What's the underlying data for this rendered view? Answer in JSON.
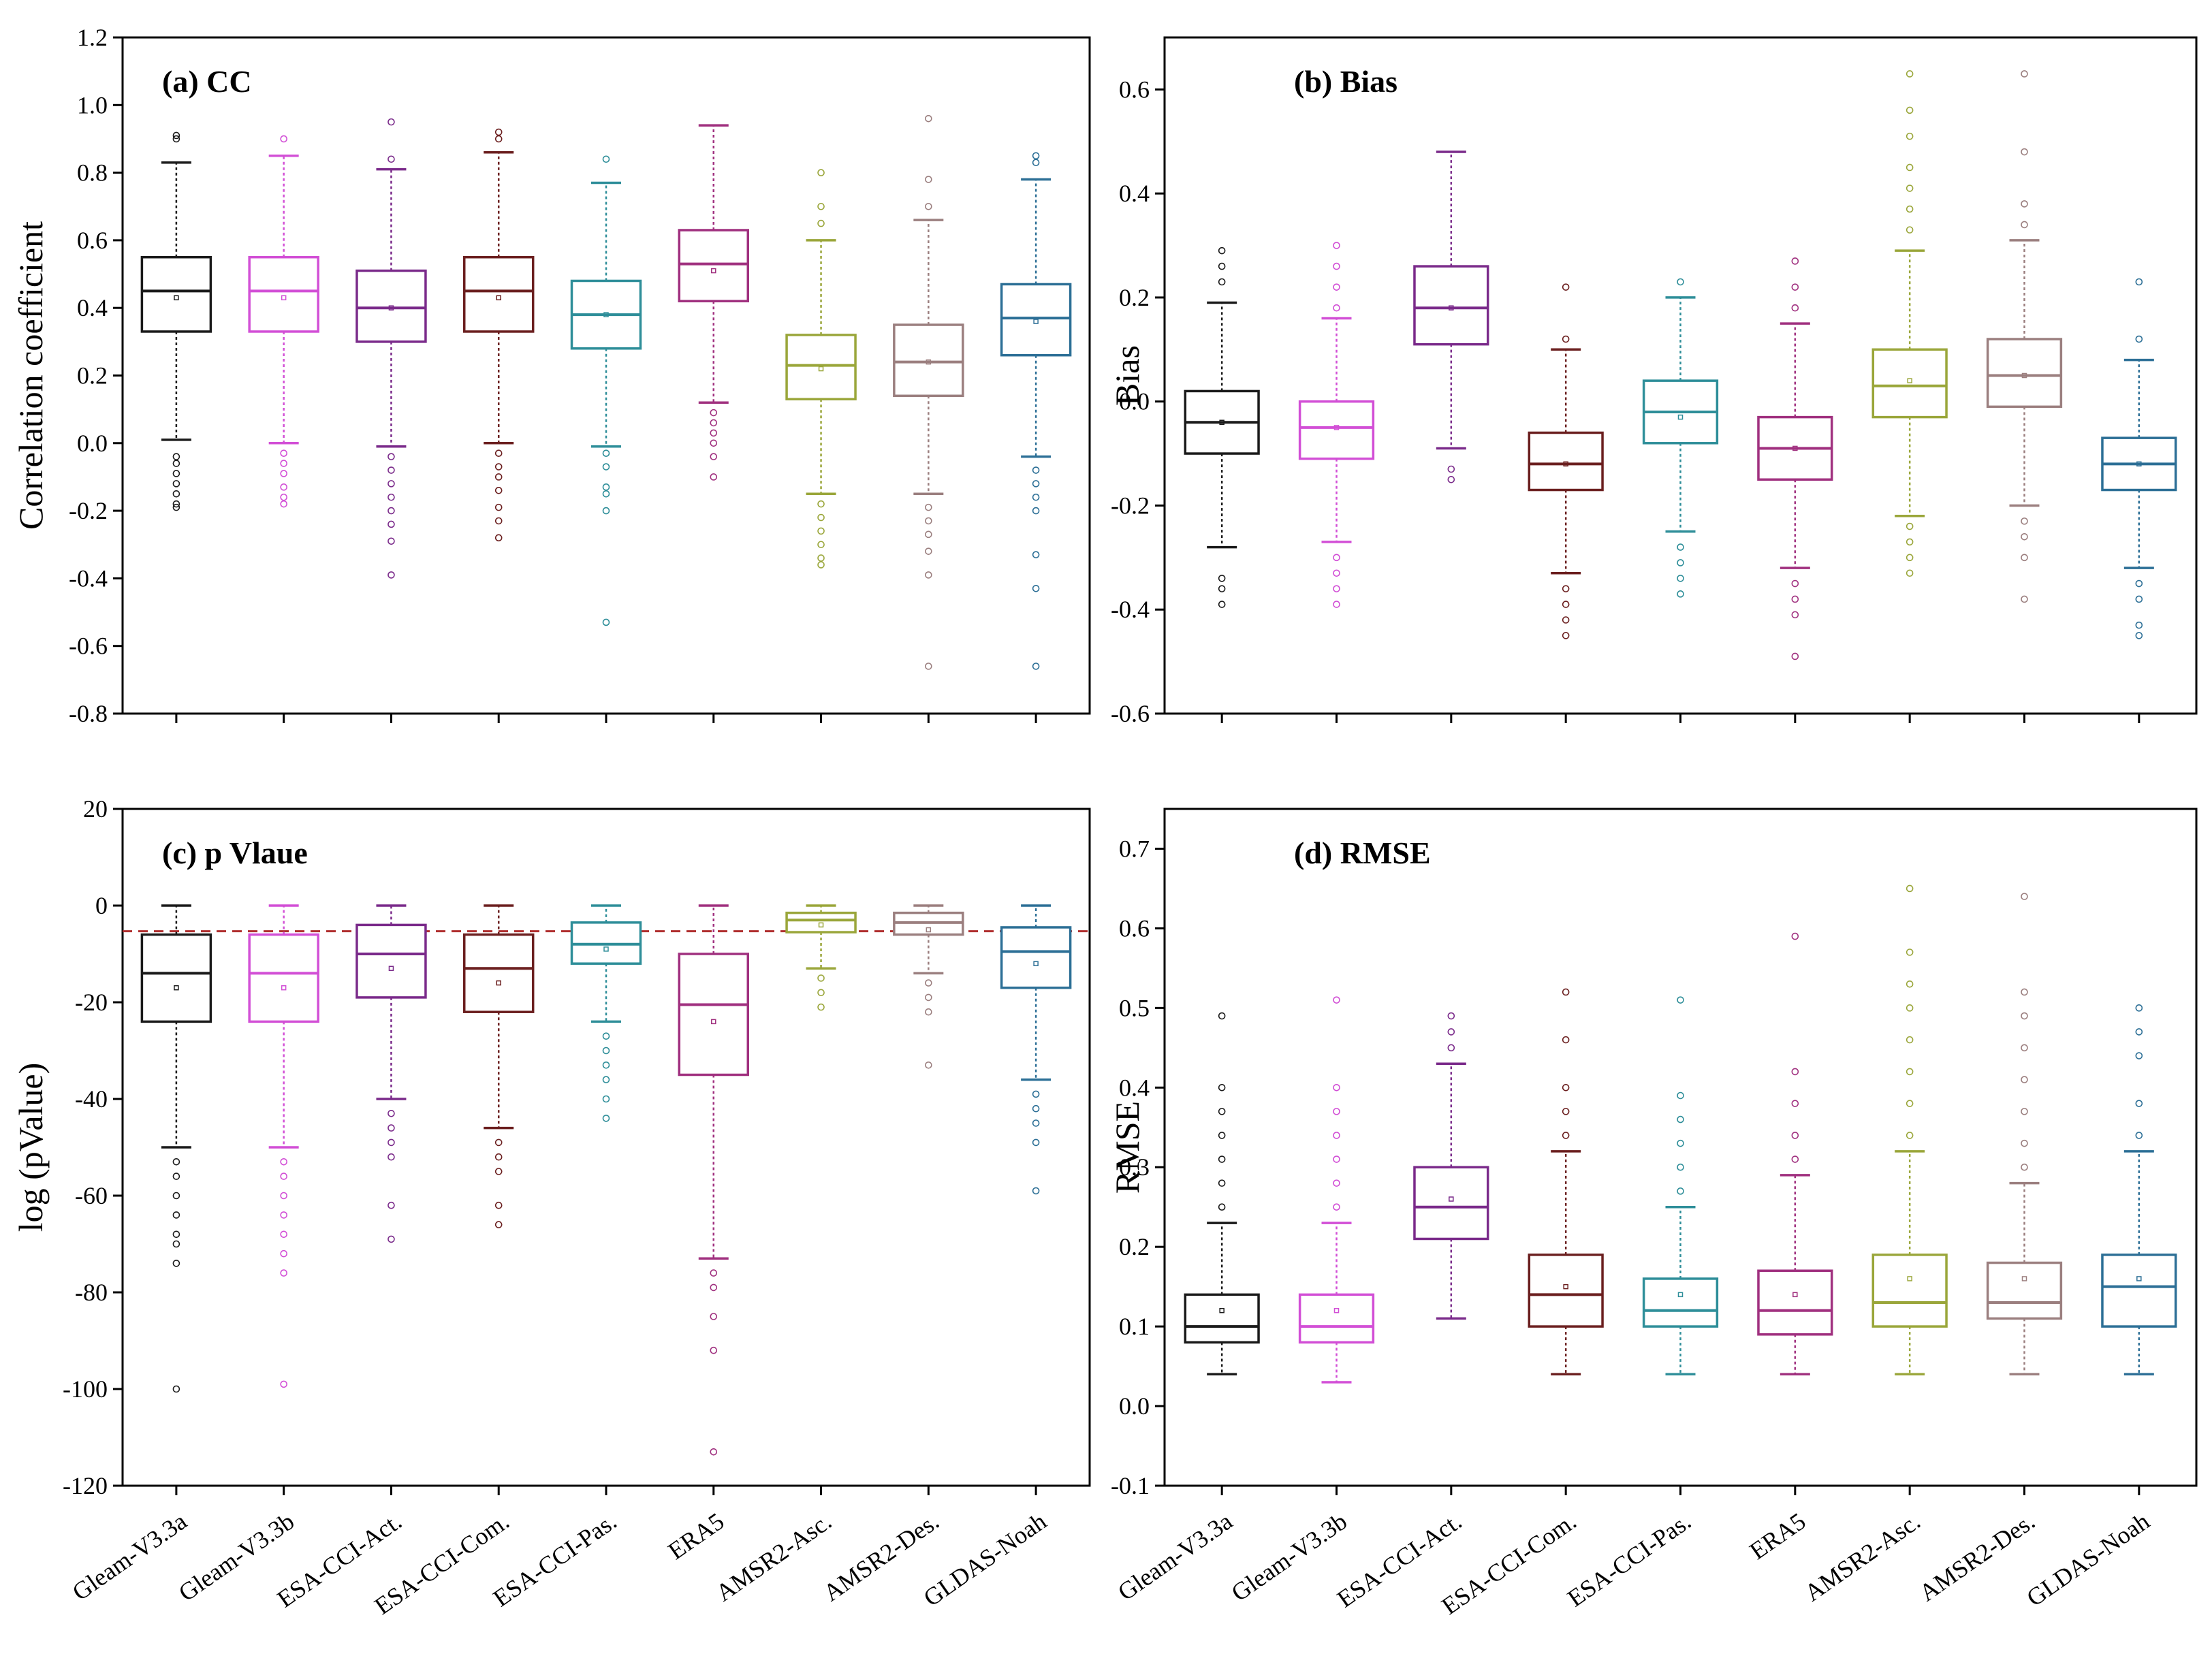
{
  "colors": {
    "Gleam-V3.3a": "#1a1a1a",
    "Gleam-V3.3b": "#d24fd6",
    "ESA-CCI-Act.": "#7a2a8a",
    "ESA-CCI-Com.": "#6b1f1f",
    "ESA-CCI-Pas.": "#2e8e99",
    "ERA5": "#a0307f",
    "AMSR2-Asc.": "#9aa63a",
    "AMSR2-Des.": "#9b7f7f",
    "GLDAS-Noah": "#2c6f96",
    "threshold": "#b03030"
  },
  "chart_data": [
    {
      "id": "cc",
      "type": "box",
      "title": "(a) CC",
      "ylabel": "Correlation coefficient",
      "ylim": [
        -0.8,
        1.2
      ],
      "yticks": [
        "-0.8",
        "-0.6",
        "-0.4",
        "-0.2",
        "0.0",
        "0.2",
        "0.4",
        "0.6",
        "0.8",
        "1.0",
        "1.2"
      ],
      "categories": [
        "Gleam-V3.3a",
        "Gleam-V3.3b",
        "ESA-CCI-Act.",
        "ESA-CCI-Com.",
        "ESA-CCI-Pas.",
        "ERA5",
        "AMSR2-Asc.",
        "AMSR2-Des.",
        "GLDAS-Noah"
      ],
      "boxes": [
        {
          "whisker_low": 0.01,
          "q1": 0.33,
          "median": 0.45,
          "q3": 0.55,
          "whisker_high": 0.83,
          "mean": 0.43,
          "outliers": [
            -0.04,
            -0.06,
            -0.09,
            -0.12,
            -0.15,
            -0.18,
            -0.19,
            0.9,
            0.91
          ]
        },
        {
          "whisker_low": 0.0,
          "q1": 0.33,
          "median": 0.45,
          "q3": 0.55,
          "whisker_high": 0.85,
          "mean": 0.43,
          "outliers": [
            -0.03,
            -0.06,
            -0.09,
            -0.13,
            -0.16,
            -0.18,
            0.9
          ]
        },
        {
          "whisker_low": -0.01,
          "q1": 0.3,
          "median": 0.4,
          "q3": 0.51,
          "whisker_high": 0.81,
          "mean": 0.4,
          "outliers": [
            -0.04,
            -0.08,
            -0.12,
            -0.16,
            -0.2,
            -0.24,
            -0.29,
            -0.39,
            0.84,
            0.95
          ]
        },
        {
          "whisker_low": 0.0,
          "q1": 0.33,
          "median": 0.45,
          "q3": 0.55,
          "whisker_high": 0.86,
          "mean": 0.43,
          "outliers": [
            -0.03,
            -0.07,
            -0.1,
            -0.14,
            -0.19,
            -0.23,
            -0.28,
            0.9,
            0.92
          ]
        },
        {
          "whisker_low": -0.01,
          "q1": 0.28,
          "median": 0.38,
          "q3": 0.48,
          "whisker_high": 0.77,
          "mean": 0.38,
          "outliers": [
            -0.03,
            -0.07,
            -0.13,
            -0.15,
            -0.2,
            -0.53,
            0.84
          ]
        },
        {
          "whisker_low": 0.12,
          "q1": 0.42,
          "median": 0.53,
          "q3": 0.63,
          "whisker_high": 0.94,
          "mean": 0.51,
          "outliers": [
            0.09,
            0.06,
            0.03,
            0.0,
            -0.04,
            -0.1
          ]
        },
        {
          "whisker_low": -0.15,
          "q1": 0.13,
          "median": 0.23,
          "q3": 0.32,
          "whisker_high": 0.6,
          "mean": 0.22,
          "outliers": [
            -0.18,
            -0.22,
            -0.26,
            -0.3,
            -0.34,
            -0.36,
            0.65,
            0.7,
            0.8
          ]
        },
        {
          "whisker_low": -0.15,
          "q1": 0.14,
          "median": 0.24,
          "q3": 0.35,
          "whisker_high": 0.66,
          "mean": 0.24,
          "outliers": [
            -0.19,
            -0.23,
            -0.27,
            -0.32,
            -0.39,
            -0.66,
            0.7,
            0.78,
            0.96
          ]
        },
        {
          "whisker_low": -0.04,
          "q1": 0.26,
          "median": 0.37,
          "q3": 0.47,
          "whisker_high": 0.78,
          "mean": 0.36,
          "outliers": [
            -0.08,
            -0.12,
            -0.16,
            -0.2,
            -0.33,
            -0.43,
            -0.66,
            0.83,
            0.85
          ]
        }
      ]
    },
    {
      "id": "bias",
      "type": "box",
      "title": "(b) Bias",
      "ylabel": "Bias",
      "ylim": [
        -0.6,
        0.7
      ],
      "yticks": [
        "-0.6",
        "-0.4",
        "-0.2",
        "0.0",
        "0.2",
        "0.4",
        "0.6"
      ],
      "categories": [
        "Gleam-V3.3a",
        "Gleam-V3.3b",
        "ESA-CCI-Act.",
        "ESA-CCI-Com.",
        "ESA-CCI-Pas.",
        "ERA5",
        "AMSR2-Asc.",
        "AMSR2-Des.",
        "GLDAS-Noah"
      ],
      "boxes": [
        {
          "whisker_low": -0.28,
          "q1": -0.1,
          "median": -0.04,
          "q3": 0.02,
          "whisker_high": 0.19,
          "mean": -0.04,
          "outliers": [
            -0.34,
            -0.36,
            -0.39,
            0.23,
            0.26,
            0.29
          ]
        },
        {
          "whisker_low": -0.27,
          "q1": -0.11,
          "median": -0.05,
          "q3": 0.0,
          "whisker_high": 0.16,
          "mean": -0.05,
          "outliers": [
            -0.3,
            -0.33,
            -0.36,
            -0.39,
            0.18,
            0.22,
            0.26,
            0.3
          ]
        },
        {
          "whisker_low": -0.09,
          "q1": 0.11,
          "median": 0.18,
          "q3": 0.26,
          "whisker_high": 0.48,
          "mean": 0.18,
          "outliers": [
            -0.13,
            -0.15
          ]
        },
        {
          "whisker_low": -0.33,
          "q1": -0.17,
          "median": -0.12,
          "q3": -0.06,
          "whisker_high": 0.1,
          "mean": -0.12,
          "outliers": [
            -0.36,
            -0.39,
            -0.42,
            -0.45,
            0.12,
            0.22
          ]
        },
        {
          "whisker_low": -0.25,
          "q1": -0.08,
          "median": -0.02,
          "q3": 0.04,
          "whisker_high": 0.2,
          "mean": -0.03,
          "outliers": [
            -0.28,
            -0.31,
            -0.34,
            -0.37,
            0.23
          ]
        },
        {
          "whisker_low": -0.32,
          "q1": -0.15,
          "median": -0.09,
          "q3": -0.03,
          "whisker_high": 0.15,
          "mean": -0.09,
          "outliers": [
            -0.35,
            -0.38,
            -0.41,
            -0.49,
            0.18,
            0.22,
            0.27
          ]
        },
        {
          "whisker_low": -0.22,
          "q1": -0.03,
          "median": 0.03,
          "q3": 0.1,
          "whisker_high": 0.29,
          "mean": 0.04,
          "outliers": [
            -0.24,
            -0.27,
            -0.3,
            -0.33,
            0.33,
            0.37,
            0.41,
            0.45,
            0.51,
            0.56,
            0.63
          ]
        },
        {
          "whisker_low": -0.2,
          "q1": -0.01,
          "median": 0.05,
          "q3": 0.12,
          "whisker_high": 0.31,
          "mean": 0.05,
          "outliers": [
            -0.23,
            -0.26,
            -0.3,
            -0.38,
            0.34,
            0.38,
            0.48,
            0.63
          ]
        },
        {
          "whisker_low": -0.32,
          "q1": -0.17,
          "median": -0.12,
          "q3": -0.07,
          "whisker_high": 0.08,
          "mean": -0.12,
          "outliers": [
            -0.35,
            -0.38,
            -0.43,
            -0.45,
            0.12,
            0.23
          ]
        }
      ]
    },
    {
      "id": "pvalue",
      "type": "box",
      "title": "(c) p Vlaue",
      "ylabel": "log (pValue)",
      "ylim": [
        -120,
        20
      ],
      "yticks": [
        "-120",
        "-100",
        "-80",
        "-60",
        "-40",
        "-20",
        "0",
        "20"
      ],
      "threshold": -5.3,
      "categories": [
        "Gleam-V3.3a",
        "Gleam-V3.3b",
        "ESA-CCI-Act.",
        "ESA-CCI-Com.",
        "ESA-CCI-Pas.",
        "ERA5",
        "AMSR2-Asc.",
        "AMSR2-Des.",
        "GLDAS-Noah"
      ],
      "boxes": [
        {
          "whisker_low": -50,
          "q1": -24,
          "median": -14,
          "q3": -6,
          "whisker_high": 0,
          "mean": -17,
          "outliers": [
            -53,
            -56,
            -60,
            -64,
            -68,
            -70,
            -74,
            -100
          ]
        },
        {
          "whisker_low": -50,
          "q1": -24,
          "median": -14,
          "q3": -6,
          "whisker_high": 0,
          "mean": -17,
          "outliers": [
            -53,
            -56,
            -60,
            -64,
            -68,
            -72,
            -76,
            -99
          ]
        },
        {
          "whisker_low": -40,
          "q1": -19,
          "median": -10,
          "q3": -4,
          "whisker_high": 0,
          "mean": -13,
          "outliers": [
            -43,
            -46,
            -49,
            -52,
            -62,
            -69
          ]
        },
        {
          "whisker_low": -46,
          "q1": -22,
          "median": -13,
          "q3": -6,
          "whisker_high": 0,
          "mean": -16,
          "outliers": [
            -49,
            -52,
            -55,
            -62,
            -66
          ]
        },
        {
          "whisker_low": -24,
          "q1": -12,
          "median": -8,
          "q3": -3.5,
          "whisker_high": 0,
          "mean": -9,
          "outliers": [
            -27,
            -30,
            -33,
            -36,
            -40,
            -44
          ]
        },
        {
          "whisker_low": -73,
          "q1": -35,
          "median": -20.5,
          "q3": -10,
          "whisker_high": 0,
          "mean": -24,
          "outliers": [
            -76,
            -79,
            -85,
            -92,
            -113
          ]
        },
        {
          "whisker_low": -13,
          "q1": -5.5,
          "median": -3,
          "q3": -1.5,
          "whisker_high": 0,
          "mean": -4,
          "outliers": [
            -15,
            -18,
            -21
          ]
        },
        {
          "whisker_low": -14,
          "q1": -6,
          "median": -3.5,
          "q3": -1.5,
          "whisker_high": 0,
          "mean": -5,
          "outliers": [
            -16,
            -19,
            -22,
            -33
          ]
        },
        {
          "whisker_low": -36,
          "q1": -17,
          "median": -9.5,
          "q3": -4.5,
          "whisker_high": 0,
          "mean": -12,
          "outliers": [
            -39,
            -42,
            -45,
            -49,
            -59
          ]
        }
      ]
    },
    {
      "id": "rmse",
      "type": "box",
      "title": "(d) RMSE",
      "ylabel": "RMSE",
      "ylim": [
        -0.1,
        0.75
      ],
      "yticks": [
        "-0.1",
        "0.0",
        "0.1",
        "0.2",
        "0.3",
        "0.4",
        "0.5",
        "0.6",
        "0.7"
      ],
      "categories": [
        "Gleam-V3.3a",
        "Gleam-V3.3b",
        "ESA-CCI-Act.",
        "ESA-CCI-Com.",
        "ESA-CCI-Pas.",
        "ERA5",
        "AMSR2-Asc.",
        "AMSR2-Des.",
        "GLDAS-Noah"
      ],
      "boxes": [
        {
          "whisker_low": 0.04,
          "q1": 0.08,
          "median": 0.1,
          "q3": 0.14,
          "whisker_high": 0.23,
          "mean": 0.12,
          "outliers": [
            0.25,
            0.28,
            0.31,
            0.34,
            0.37,
            0.4,
            0.49
          ]
        },
        {
          "whisker_low": 0.03,
          "q1": 0.08,
          "median": 0.1,
          "q3": 0.14,
          "whisker_high": 0.23,
          "mean": 0.12,
          "outliers": [
            0.25,
            0.28,
            0.31,
            0.34,
            0.37,
            0.4,
            0.51
          ]
        },
        {
          "whisker_low": 0.11,
          "q1": 0.21,
          "median": 0.25,
          "q3": 0.3,
          "whisker_high": 0.43,
          "mean": 0.26,
          "outliers": [
            0.45,
            0.47,
            0.49
          ]
        },
        {
          "whisker_low": 0.04,
          "q1": 0.1,
          "median": 0.14,
          "q3": 0.19,
          "whisker_high": 0.32,
          "mean": 0.15,
          "outliers": [
            0.34,
            0.37,
            0.4,
            0.46,
            0.52
          ]
        },
        {
          "whisker_low": 0.04,
          "q1": 0.1,
          "median": 0.12,
          "q3": 0.16,
          "whisker_high": 0.25,
          "mean": 0.14,
          "outliers": [
            0.27,
            0.3,
            0.33,
            0.36,
            0.39,
            0.51
          ]
        },
        {
          "whisker_low": 0.04,
          "q1": 0.09,
          "median": 0.12,
          "q3": 0.17,
          "whisker_high": 0.29,
          "mean": 0.14,
          "outliers": [
            0.31,
            0.34,
            0.38,
            0.42,
            0.59
          ]
        },
        {
          "whisker_low": 0.04,
          "q1": 0.1,
          "median": 0.13,
          "q3": 0.19,
          "whisker_high": 0.32,
          "mean": 0.16,
          "outliers": [
            0.34,
            0.38,
            0.42,
            0.46,
            0.5,
            0.53,
            0.57,
            0.65
          ]
        },
        {
          "whisker_low": 0.04,
          "q1": 0.11,
          "median": 0.13,
          "q3": 0.18,
          "whisker_high": 0.28,
          "mean": 0.16,
          "outliers": [
            0.3,
            0.33,
            0.37,
            0.41,
            0.45,
            0.49,
            0.52,
            0.64
          ]
        },
        {
          "whisker_low": 0.04,
          "q1": 0.1,
          "median": 0.15,
          "q3": 0.19,
          "whisker_high": 0.32,
          "mean": 0.16,
          "outliers": [
            0.34,
            0.38,
            0.44,
            0.47,
            0.5
          ]
        }
      ]
    }
  ]
}
